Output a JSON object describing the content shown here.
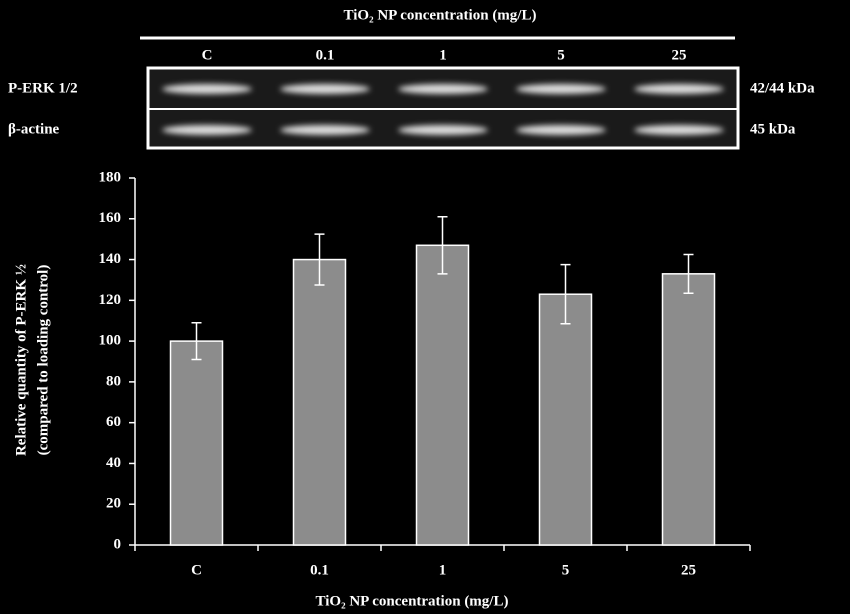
{
  "chart_data": {
    "type": "bar",
    "blot_title": "TiO₂ NP concentration (mg/L)",
    "blot_rows": [
      {
        "label": "P-ERK 1/2",
        "size": "42/44 kDa"
      },
      {
        "label": "β-actine",
        "size": "45 kDa"
      }
    ],
    "categories": [
      "C",
      "0.1",
      "1",
      "5",
      "25"
    ],
    "values": [
      100,
      140,
      147,
      123,
      133
    ],
    "errors": [
      9,
      12.5,
      14,
      14.5,
      9.5
    ],
    "color": "#8c8c8c",
    "ylim": [
      0,
      180
    ],
    "yticks": [
      0,
      20,
      40,
      60,
      80,
      100,
      120,
      140,
      160,
      180
    ],
    "x_label": "TiO₂ NP concentration (mg/L)",
    "y_label": [
      "Relative quantity of P-ERK ½",
      "(compared to loading control)"
    ]
  }
}
